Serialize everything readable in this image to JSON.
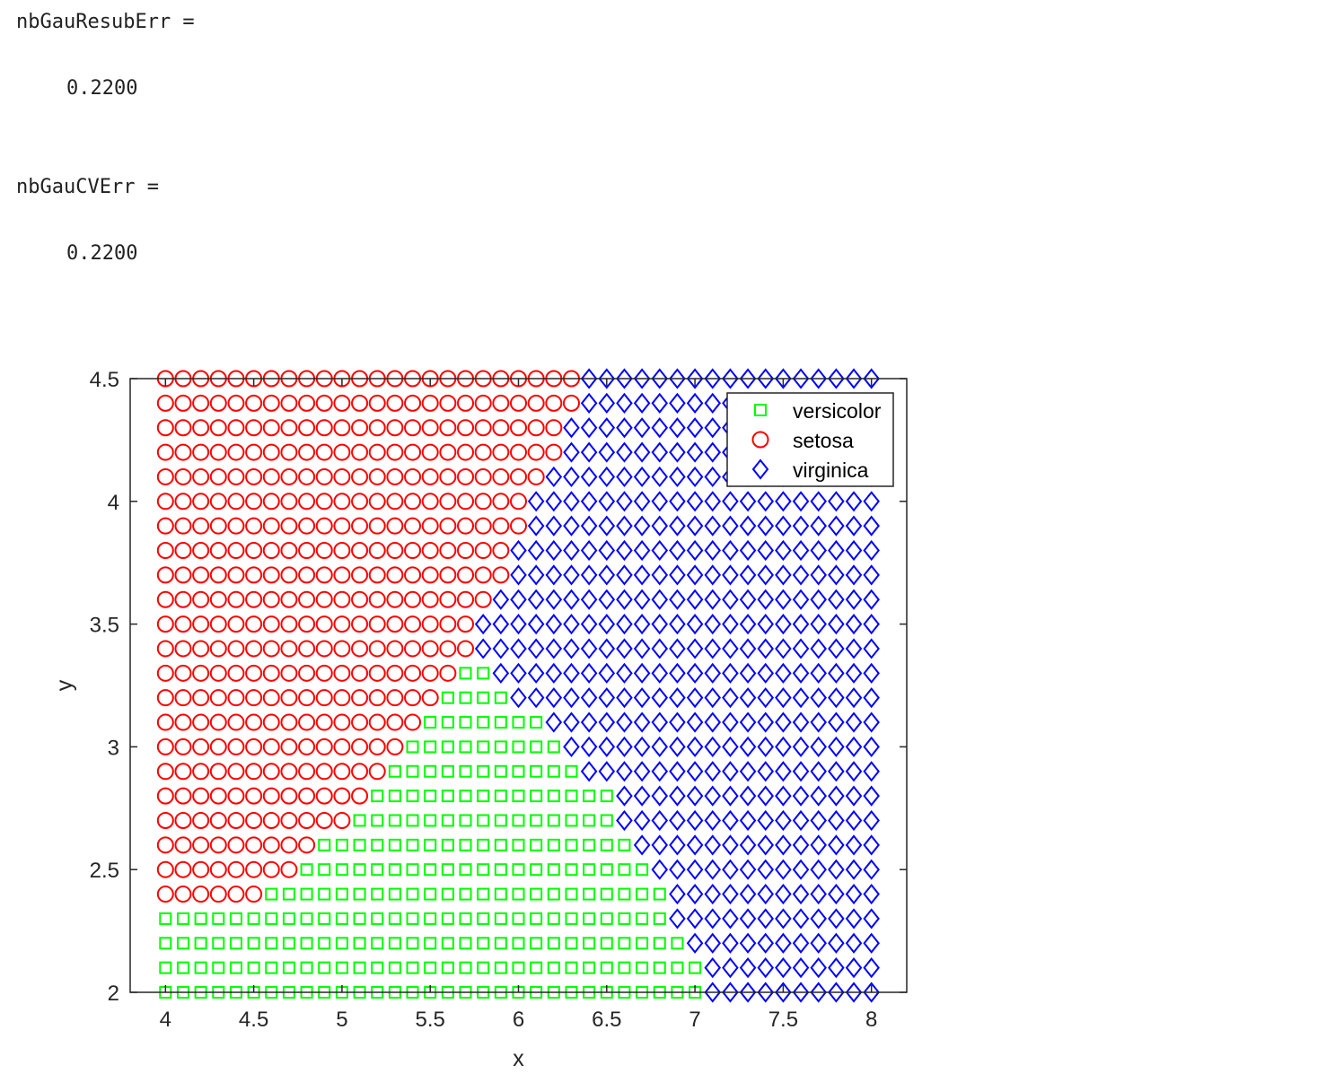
{
  "console": {
    "resub_name": "nbGauResubErr =",
    "resub_value": "0.2200",
    "cv_name": "nbGauCVErr =",
    "cv_value": "0.2200"
  },
  "chart_data": {
    "type": "scatter",
    "title": "",
    "xlabel": "x",
    "ylabel": "y",
    "xlim": [
      3.8,
      8.2
    ],
    "ylim": [
      2,
      4.5
    ],
    "xticks": [
      4,
      4.5,
      5,
      5.5,
      6,
      6.5,
      7,
      7.5,
      8
    ],
    "yticks": [
      2,
      2.5,
      3,
      3.5,
      4,
      4.5
    ],
    "xtick_labels": [
      "4",
      "4.5",
      "5",
      "5.5",
      "6",
      "6.5",
      "7",
      "7.5",
      "8"
    ],
    "ytick_labels": [
      "2",
      "2.5",
      "3",
      "3.5",
      "4",
      "4.5"
    ],
    "grid": false,
    "legend_position": "top-right",
    "x_start": 4,
    "x_step": 0.1,
    "x_count": 41,
    "y_start": 2,
    "y_step": 0.1,
    "series": [
      {
        "name": "versicolor",
        "marker": "square",
        "color": "#00ff00"
      },
      {
        "name": "setosa",
        "marker": "circle",
        "color": "#ff0000"
      },
      {
        "name": "virginica",
        "marker": "diamond",
        "color": "#0000ff"
      }
    ],
    "rows": [
      {
        "y": 2.0,
        "setosa_until": null,
        "versicolor_until": 7.0
      },
      {
        "y": 2.1,
        "setosa_until": null,
        "versicolor_until": 7.0
      },
      {
        "y": 2.2,
        "setosa_until": null,
        "versicolor_until": 6.9
      },
      {
        "y": 2.3,
        "setosa_until": null,
        "versicolor_until": 6.8
      },
      {
        "y": 2.4,
        "setosa_until": 4.5,
        "versicolor_until": 6.8
      },
      {
        "y": 2.5,
        "setosa_until": 4.7,
        "versicolor_until": 6.7
      },
      {
        "y": 2.6,
        "setosa_until": 4.8,
        "versicolor_until": 6.6
      },
      {
        "y": 2.7,
        "setosa_until": 5.0,
        "versicolor_until": 6.5
      },
      {
        "y": 2.8,
        "setosa_until": 5.1,
        "versicolor_until": 6.5
      },
      {
        "y": 2.9,
        "setosa_until": 5.2,
        "versicolor_until": 6.3
      },
      {
        "y": 3.0,
        "setosa_until": 5.3,
        "versicolor_until": 6.2
      },
      {
        "y": 3.1,
        "setosa_until": 5.4,
        "versicolor_until": 6.1
      },
      {
        "y": 3.2,
        "setosa_until": 5.5,
        "versicolor_until": 5.9
      },
      {
        "y": 3.3,
        "setosa_until": 5.6,
        "versicolor_until": 5.8
      },
      {
        "y": 3.4,
        "setosa_until": 5.7,
        "versicolor_until": null
      },
      {
        "y": 3.5,
        "setosa_until": 5.7,
        "versicolor_until": null
      },
      {
        "y": 3.6,
        "setosa_until": 5.8,
        "versicolor_until": null
      },
      {
        "y": 3.7,
        "setosa_until": 5.9,
        "versicolor_until": null
      },
      {
        "y": 3.8,
        "setosa_until": 5.9,
        "versicolor_until": null
      },
      {
        "y": 3.9,
        "setosa_until": 6.0,
        "versicolor_until": null
      },
      {
        "y": 4.0,
        "setosa_until": 6.0,
        "versicolor_until": null
      },
      {
        "y": 4.1,
        "setosa_until": 6.1,
        "versicolor_until": null
      },
      {
        "y": 4.2,
        "setosa_until": 6.2,
        "versicolor_until": null
      },
      {
        "y": 4.3,
        "setosa_until": 6.2,
        "versicolor_until": null
      },
      {
        "y": 4.4,
        "setosa_until": 6.3,
        "versicolor_until": null
      },
      {
        "y": 4.5,
        "setosa_until": 6.3,
        "versicolor_until": null
      }
    ]
  }
}
